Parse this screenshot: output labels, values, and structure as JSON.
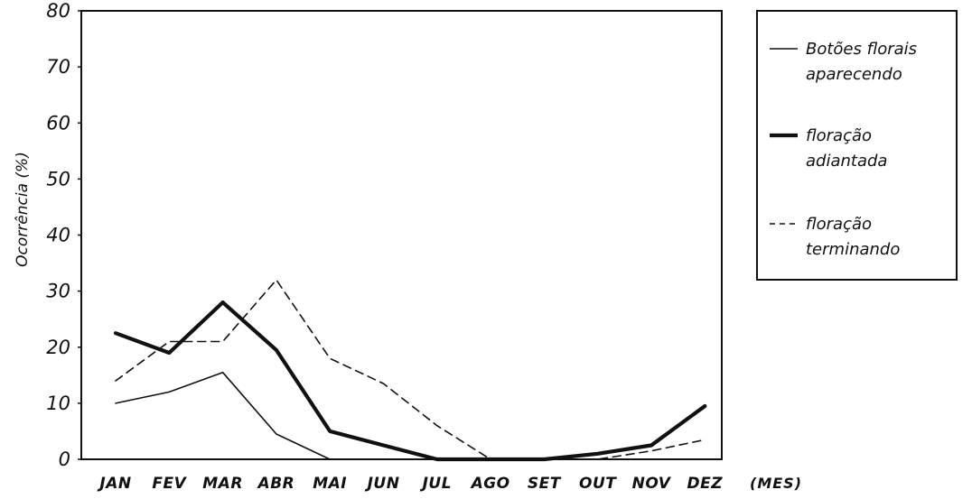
{
  "chart_data": {
    "type": "line",
    "categories": [
      "JAN",
      "FEV",
      "MAR",
      "ABR",
      "MAI",
      "JUN",
      "JUL",
      "AGO",
      "SET",
      "OUT",
      "NOV",
      "DEZ"
    ],
    "xunit": "(MES)",
    "ylabel": "Ocorrência (%)",
    "ylim": [
      0,
      80
    ],
    "yticks": [
      "0",
      "10",
      "20",
      "30",
      "40",
      "50",
      "60",
      "70",
      "80"
    ],
    "grid": false,
    "legend_position": "right",
    "series": [
      {
        "name": "Botões florais aparecendo",
        "line1": "Botões florais",
        "line2": "aparecendo",
        "style": "thin",
        "points": [
          [
            0,
            10
          ],
          [
            1,
            12
          ],
          [
            2,
            15.5
          ],
          [
            3,
            4.5
          ],
          [
            4,
            0
          ]
        ]
      },
      {
        "name": "floração adiantada",
        "line1": "floração",
        "line2": "adiantada",
        "style": "thick",
        "points": [
          [
            0,
            22.5
          ],
          [
            1,
            19
          ],
          [
            2,
            28
          ],
          [
            3,
            19.5
          ],
          [
            4,
            5
          ],
          [
            5,
            2.5
          ],
          [
            6,
            0
          ],
          [
            7,
            0
          ],
          [
            8,
            0
          ],
          [
            9,
            1
          ],
          [
            10,
            2.5
          ],
          [
            11,
            9.5
          ]
        ]
      },
      {
        "name": "floração terminando",
        "line1": "floração",
        "line2": "terminando",
        "style": "dashed",
        "points": [
          [
            0,
            14
          ],
          [
            1,
            21
          ],
          [
            2,
            21
          ],
          [
            3,
            32
          ],
          [
            4,
            18
          ],
          [
            5,
            13.5
          ],
          [
            6,
            6
          ],
          [
            7,
            0
          ],
          [
            8,
            0
          ],
          [
            9,
            0
          ],
          [
            10,
            1.5
          ],
          [
            11,
            3.5
          ]
        ]
      }
    ]
  }
}
